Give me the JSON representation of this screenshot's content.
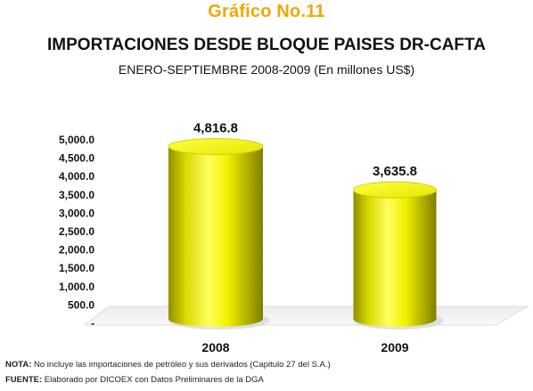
{
  "title": "Gráfico No.11",
  "subtitle1": "IMPORTACIONES DESDE BLOQUE PAISES DR-CAFTA",
  "subtitle2": "ENERO-SEPTIEMBRE 2008-2009 (En millones US$)",
  "note": {
    "label": "NOTA:",
    "text": " No incluye las importaciones de petróleo y sus derivados (Capitulo 27 del S.A.)"
  },
  "source": {
    "label": "FUENTE:",
    "text": " Elaborado por DICOEX con Datos Preliminares de la DGA"
  },
  "colors": {
    "bar": "#ffff00",
    "title": "#f0a800"
  },
  "chart_data": {
    "type": "bar",
    "categories": [
      "2008",
      "2009"
    ],
    "values": [
      4816.8,
      3635.8
    ],
    "value_labels": [
      "4,816.8",
      "3,635.8"
    ],
    "ylim": [
      0,
      5000
    ],
    "yticks": [
      0,
      500,
      1000,
      1500,
      2000,
      2500,
      3000,
      3500,
      4000,
      4500,
      5000
    ],
    "ytick_labels": [
      "-",
      "500.0",
      "1,000.0",
      "1,500.0",
      "2,000.0",
      "2,500.0",
      "3,000.0",
      "3,500.0",
      "4,000.0",
      "4,500.0",
      "5,000.0"
    ],
    "grid": false,
    "legend": "none",
    "style": "3d-cylinder"
  }
}
